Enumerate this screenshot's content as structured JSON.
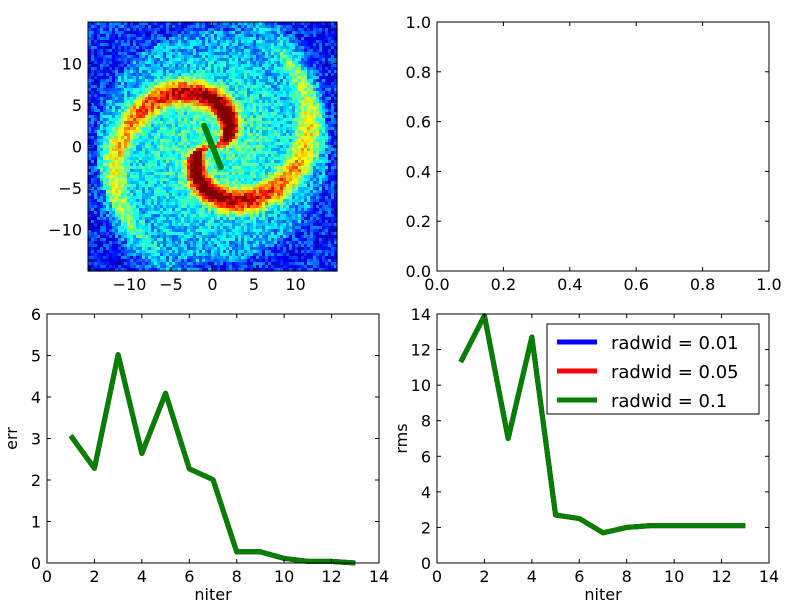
{
  "figure": {
    "background": "#ffffff"
  },
  "chart_data": [
    {
      "type": "heatmap",
      "description_colormap": "jet",
      "xlim": [
        -15,
        15
      ],
      "ylim": [
        -15,
        15
      ],
      "xticks": [
        -10,
        -5,
        0,
        5,
        10
      ],
      "yticks": [
        -10,
        -5,
        0,
        5,
        10
      ],
      "xtick_labels": [
        "−10",
        "−5",
        "0",
        "5",
        "10"
      ],
      "ytick_labels": [
        "−10",
        "−5",
        "0",
        "5",
        "10"
      ],
      "overlay_line": {
        "color": "#008000",
        "x": [
          -1.0,
          1.0
        ],
        "y": [
          2.5,
          -2.5
        ]
      }
    },
    {
      "type": "line",
      "empty": true,
      "xlim": [
        0,
        1
      ],
      "ylim": [
        0,
        1
      ],
      "xticks": [
        0,
        0.2,
        0.4,
        0.6,
        0.8,
        1.0
      ],
      "yticks": [
        0,
        0.2,
        0.4,
        0.6,
        0.8,
        1.0
      ],
      "xtick_labels": [
        "0.0",
        "0.2",
        "0.4",
        "0.6",
        "0.8",
        "1.0"
      ],
      "ytick_labels": [
        "0.0",
        "0.2",
        "0.4",
        "0.6",
        "0.8",
        "1.0"
      ]
    },
    {
      "type": "line",
      "xlabel": "niter",
      "ylabel": "err",
      "xlim": [
        0,
        14
      ],
      "ylim": [
        0,
        6
      ],
      "xticks": [
        0,
        2,
        4,
        6,
        8,
        10,
        12,
        14
      ],
      "yticks": [
        0,
        1,
        2,
        3,
        4,
        5,
        6
      ],
      "xtick_labels": [
        "0",
        "2",
        "4",
        "6",
        "8",
        "10",
        "12",
        "14"
      ],
      "ytick_labels": [
        "0",
        "1",
        "2",
        "3",
        "4",
        "5",
        "6"
      ],
      "x": [
        1,
        2,
        3,
        4,
        5,
        6,
        7,
        8,
        9,
        10,
        11,
        12,
        13
      ],
      "series": [
        {
          "name": "radwid = 0.01",
          "color": "#0000ff",
          "values": [
            3.07,
            2.28,
            5.02,
            2.64,
            4.09,
            2.27,
            2.01,
            0.27,
            0.27,
            0.11,
            0.04,
            0.04,
            0.0
          ]
        },
        {
          "name": "radwid = 0.05",
          "color": "#ff0000",
          "values": [
            3.07,
            2.28,
            5.02,
            2.64,
            4.09,
            2.27,
            2.01,
            0.27,
            0.27,
            0.11,
            0.04,
            0.04,
            0.0
          ]
        },
        {
          "name": "radwid = 0.1",
          "color": "#008000",
          "values": [
            3.07,
            2.28,
            5.02,
            2.64,
            4.09,
            2.27,
            2.01,
            0.27,
            0.27,
            0.11,
            0.04,
            0.04,
            0.0
          ]
        }
      ]
    },
    {
      "type": "line",
      "xlabel": "niter",
      "ylabel": "rms",
      "xlim": [
        0,
        14
      ],
      "ylim": [
        0,
        14
      ],
      "xticks": [
        0,
        2,
        4,
        6,
        8,
        10,
        12,
        14
      ],
      "yticks": [
        0,
        2,
        4,
        6,
        8,
        10,
        12,
        14
      ],
      "xtick_labels": [
        "0",
        "2",
        "4",
        "6",
        "8",
        "10",
        "12",
        "14"
      ],
      "ytick_labels": [
        "0",
        "2",
        "4",
        "6",
        "8",
        "10",
        "12",
        "14"
      ],
      "legend_position": "top-right",
      "x": [
        1,
        2,
        3,
        4,
        5,
        6,
        7,
        8,
        9,
        10,
        11,
        12,
        13
      ],
      "series": [
        {
          "name": "radwid = 0.01",
          "color": "#0000ff",
          "values": [
            11.3,
            13.9,
            7.0,
            12.7,
            2.7,
            2.5,
            1.7,
            2.0,
            2.1,
            2.1,
            2.1,
            2.1,
            2.1
          ]
        },
        {
          "name": "radwid = 0.05",
          "color": "#ff0000",
          "values": [
            11.3,
            13.9,
            7.0,
            12.7,
            2.7,
            2.5,
            1.7,
            2.0,
            2.1,
            2.1,
            2.1,
            2.1,
            2.1
          ]
        },
        {
          "name": "radwid = 0.1",
          "color": "#008000",
          "values": [
            11.3,
            13.9,
            7.0,
            12.7,
            2.7,
            2.5,
            1.7,
            2.0,
            2.1,
            2.1,
            2.1,
            2.1,
            2.1
          ]
        }
      ]
    }
  ]
}
